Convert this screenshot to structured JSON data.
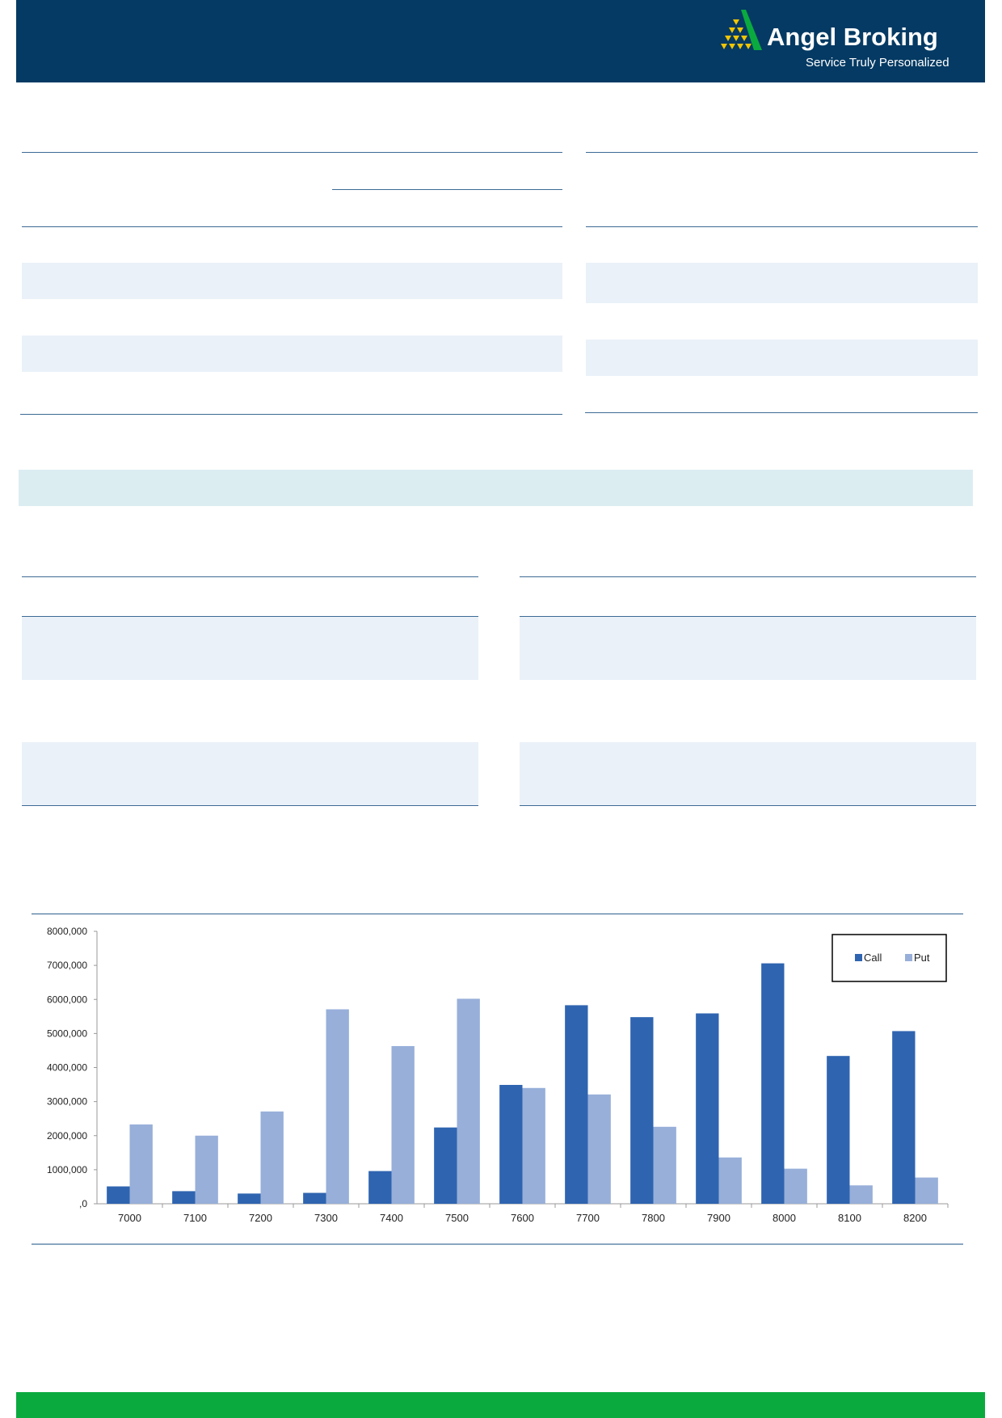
{
  "header": {
    "brand": "Angel Broking",
    "tagline": "Service Truly Personalized",
    "bg_color": "#043a63",
    "logo_icon": "angel-pyramid-logo"
  },
  "footer": {
    "color": "#0aaa3f"
  },
  "chart_data": {
    "type": "bar",
    "categories": [
      "7000",
      "7100",
      "7200",
      "7300",
      "7400",
      "7500",
      "7600",
      "7700",
      "7800",
      "7900",
      "8000",
      "8100",
      "8200"
    ],
    "series": [
      {
        "name": "Call",
        "color": "#2f64b0",
        "values": [
          510000,
          370000,
          300000,
          320000,
          960000,
          2240000,
          3490000,
          5830000,
          5480000,
          5590000,
          7060000,
          4340000,
          5070000
        ]
      },
      {
        "name": "Put",
        "color": "#97afd9",
        "values": [
          2330000,
          2000000,
          2710000,
          5710000,
          4630000,
          6020000,
          3400000,
          3210000,
          2260000,
          1360000,
          1030000,
          540000,
          770000
        ]
      }
    ],
    "yticks": [
      ",0",
      "1000,000",
      "2000,000",
      "3000,000",
      "4000,000",
      "5000,000",
      "6000,000",
      "7000,000",
      "8000,000"
    ],
    "ylim": [
      0,
      8000000
    ],
    "legend": "top-right",
    "grid": false
  }
}
